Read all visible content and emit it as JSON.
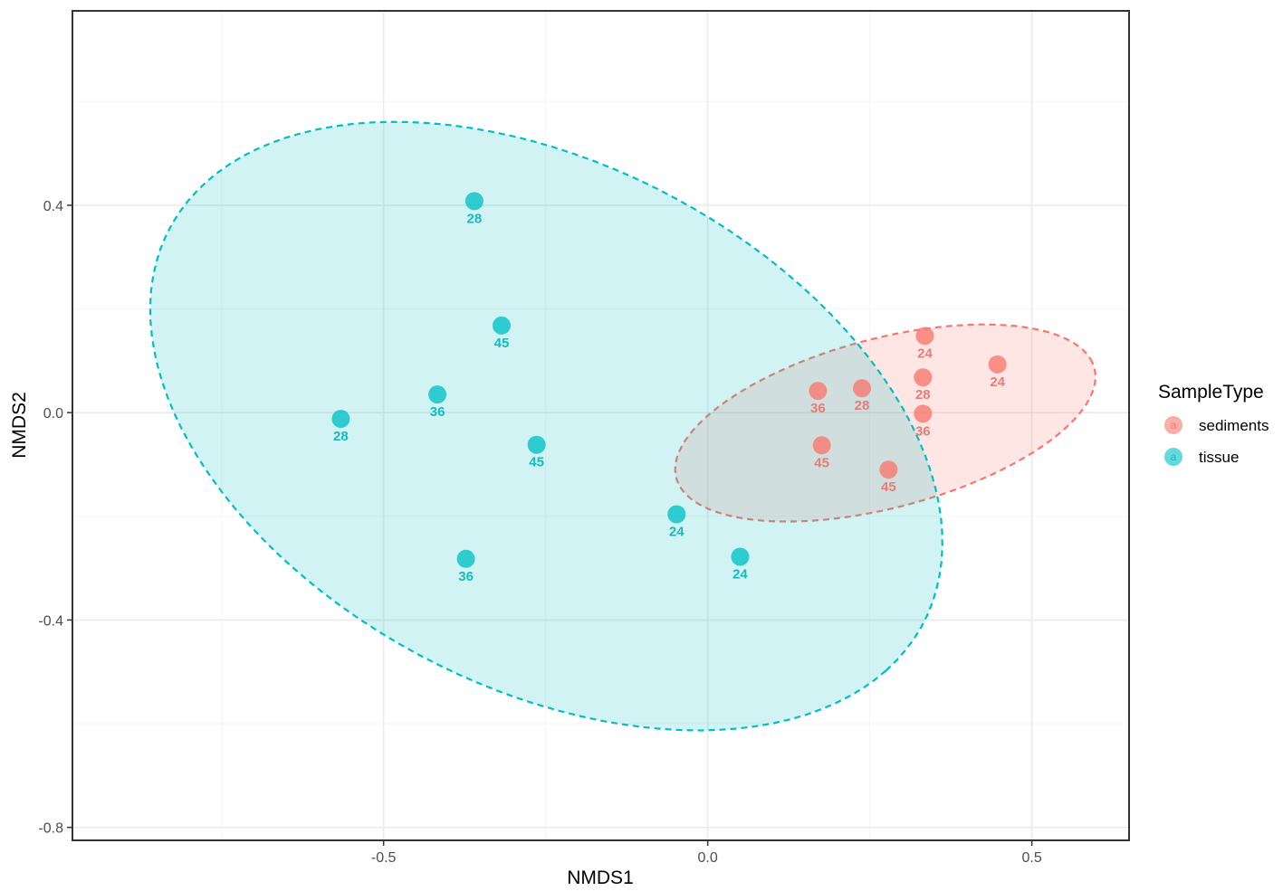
{
  "chart_data": {
    "type": "scatter",
    "xlabel": "NMDS1",
    "ylabel": "NMDS2",
    "xlim": [
      -0.98,
      0.65
    ],
    "ylim": [
      -0.825,
      0.775
    ],
    "x_ticks": [
      -0.5,
      0.0,
      0.5
    ],
    "x_tick_labels": [
      "-0.5",
      "0.0",
      "0.5"
    ],
    "y_ticks": [
      -0.8,
      -0.4,
      0.0,
      0.4
    ],
    "y_tick_labels": [
      "-0.8",
      "-0.4",
      "0.0",
      "0.4"
    ],
    "grid": true,
    "legend": {
      "title": "SampleType",
      "placement": "right",
      "key_glyph": "a"
    },
    "series": [
      {
        "name": "sediments",
        "color": "#F8766D",
        "label_color": "#E8736B",
        "points": [
          {
            "x": 0.335,
            "y": 0.148,
            "label": "24"
          },
          {
            "x": 0.447,
            "y": 0.093,
            "label": "24"
          },
          {
            "x": 0.332,
            "y": 0.068,
            "label": "28"
          },
          {
            "x": 0.238,
            "y": 0.047,
            "label": "28"
          },
          {
            "x": 0.17,
            "y": 0.042,
            "label": "36"
          },
          {
            "x": 0.332,
            "y": -0.002,
            "label": "36"
          },
          {
            "x": 0.176,
            "y": -0.063,
            "label": "45"
          },
          {
            "x": 0.279,
            "y": -0.11,
            "label": "45"
          }
        ],
        "ellipse": {
          "cx": 0.274,
          "cy": -0.02,
          "rx": 0.34,
          "ry": 0.16,
          "angle_deg": 20
        }
      },
      {
        "name": "tissue",
        "color": "#00BFC4",
        "label_color": "#00B7BA",
        "points": [
          {
            "x": -0.36,
            "y": 0.408,
            "label": "28"
          },
          {
            "x": -0.318,
            "y": 0.168,
            "label": "45"
          },
          {
            "x": -0.417,
            "y": 0.035,
            "label": "36"
          },
          {
            "x": -0.566,
            "y": -0.012,
            "label": "28"
          },
          {
            "x": -0.264,
            "y": -0.062,
            "label": "45"
          },
          {
            "x": -0.048,
            "y": -0.196,
            "label": "24"
          },
          {
            "x": -0.373,
            "y": -0.282,
            "label": "36"
          },
          {
            "x": 0.05,
            "y": -0.278,
            "label": "24"
          }
        ],
        "ellipse": {
          "cx": -0.249,
          "cy": -0.026,
          "rx": 0.705,
          "ry": 0.47,
          "angle_deg": -42
        }
      }
    ]
  }
}
